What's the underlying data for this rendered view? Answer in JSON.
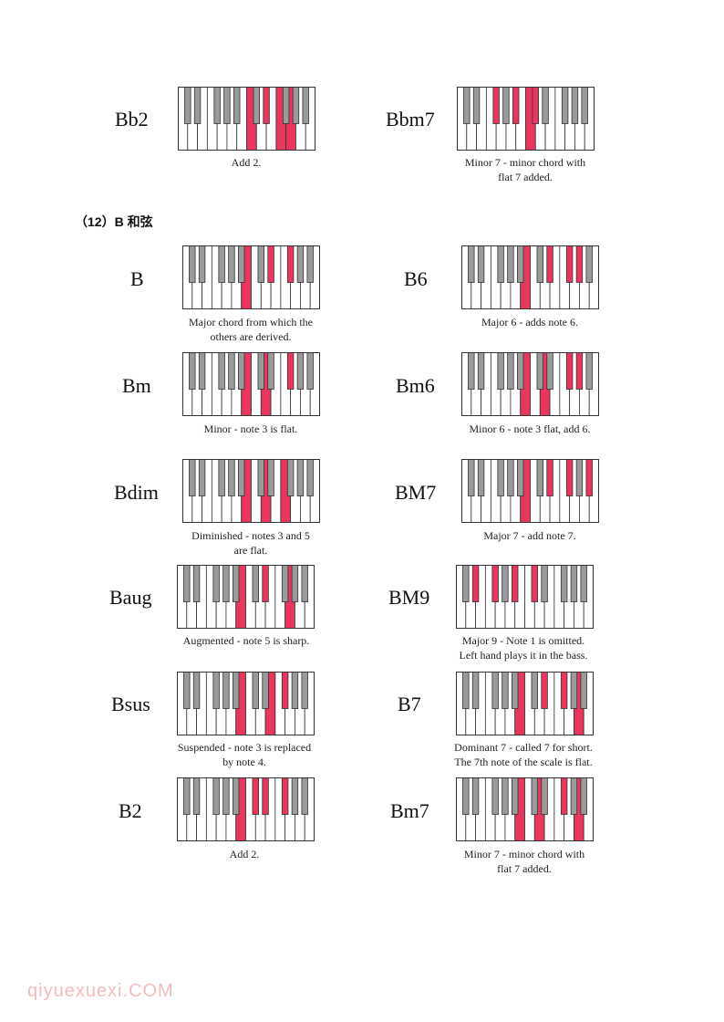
{
  "colors": {
    "highlight": "#e8365d",
    "black_key": "#9a9a9a",
    "white_key": "#ffffff",
    "outline": "#333333"
  },
  "section_heading": "（12）B 和弦",
  "watermark": "qiyuexuexi.COM",
  "chords": [
    {
      "name": "Bb2",
      "caption": "Add 2.",
      "keys": [
        12,
        15,
        17,
        19
      ]
    },
    {
      "name": "Bbm7",
      "caption": "Minor 7 - minor chord with\nflat 7 added.",
      "keys": [
        6,
        10,
        12,
        13
      ]
    },
    {
      "name": "B",
      "caption": "Major chord from which the\nothers are derived.",
      "keys": [
        11,
        15,
        18
      ]
    },
    {
      "name": "B6",
      "caption": "Major 6 - adds note 6.",
      "keys": [
        11,
        15,
        18,
        20
      ]
    },
    {
      "name": "Bm",
      "caption": "Minor - note 3 is flat.",
      "keys": [
        11,
        14,
        18
      ]
    },
    {
      "name": "Bm6",
      "caption": "Minor 6 - note 3 flat, add 6.",
      "keys": [
        11,
        14,
        18,
        20
      ]
    },
    {
      "name": "Bdim",
      "caption": "Diminished - notes 3 and 5\nare flat.",
      "keys": [
        11,
        14,
        17
      ]
    },
    {
      "name": "BM7",
      "caption": "Major 7 - add note 7.",
      "keys": [
        11,
        15,
        18,
        22
      ]
    },
    {
      "name": "Baug",
      "caption": "Augmented - note 5 is sharp.",
      "keys": [
        11,
        15,
        19
      ]
    },
    {
      "name": "BM9",
      "caption": "Major 9 - Note 1 is omitted.\nLeft hand plays it in the bass.",
      "keys": [
        3,
        6,
        10,
        13
      ]
    },
    {
      "name": "Bsus",
      "caption": "Suspended - note 3 is replaced\nby note 4.",
      "keys": [
        11,
        16,
        18
      ]
    },
    {
      "name": "B7",
      "caption": "Dominant 7 - called 7 for short.\nThe 7th note of the scale is flat.",
      "keys": [
        11,
        15,
        18,
        21
      ]
    },
    {
      "name": "B2",
      "caption": "Add 2.",
      "keys": [
        11,
        13,
        15,
        18
      ]
    },
    {
      "name": "Bm7",
      "caption": "Minor 7 - minor chord with\nflat 7 added.",
      "keys": [
        11,
        14,
        18,
        21
      ]
    }
  ]
}
